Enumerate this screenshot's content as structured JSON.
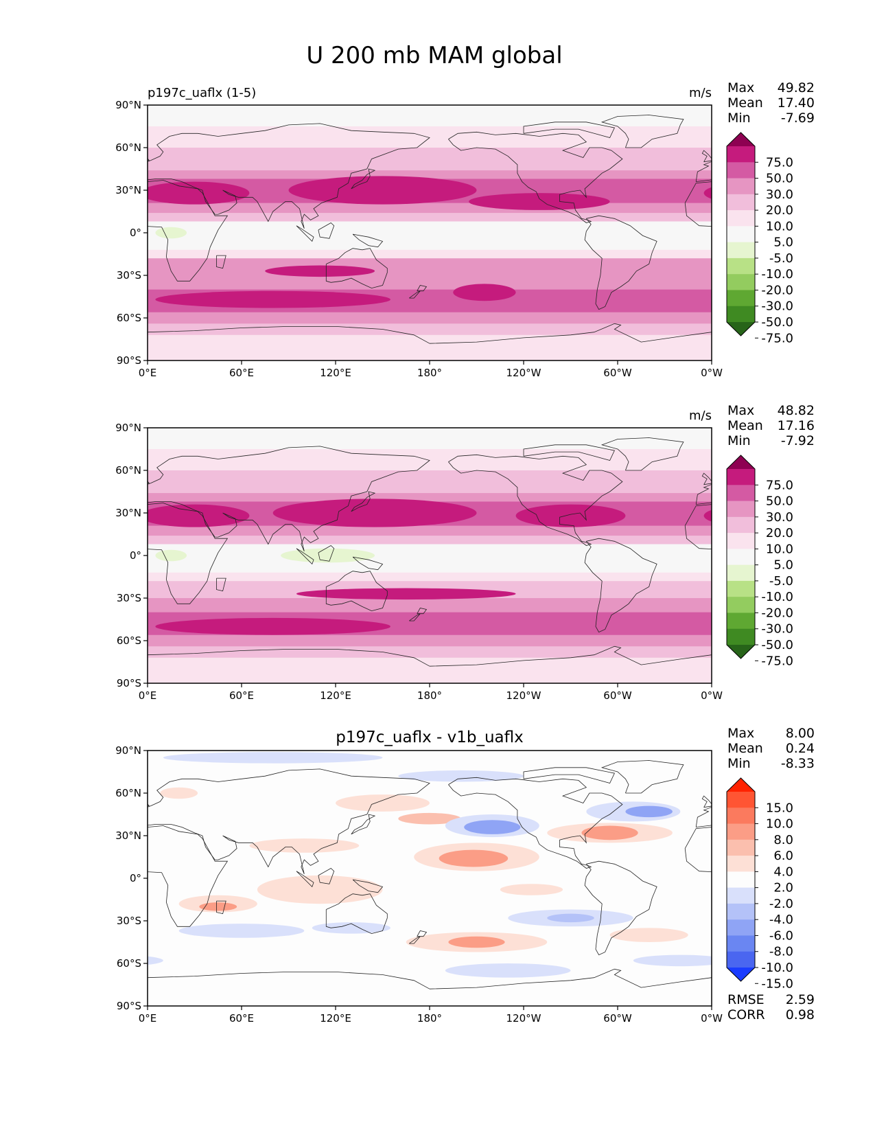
{
  "figure": {
    "title": "U 200 mb MAM global"
  },
  "chart_data": [
    {
      "type": "heatmap",
      "panel": "test",
      "title": "",
      "left_label": "p197c_uaflx (1-5)",
      "units": "m/s",
      "stats": [
        {
          "label": "Max",
          "value": "49.82"
        },
        {
          "label": "Mean",
          "value": "17.40"
        },
        {
          "label": "Min",
          "value": "-7.69"
        }
      ],
      "colorbar": {
        "levels": [
          "75.0",
          "50.0",
          "30.0",
          "20.0",
          "10.0",
          "5.0",
          "-5.0",
          "-10.0",
          "-20.0",
          "-30.0",
          "-50.0",
          "-75.0"
        ],
        "colors": [
          "#8e0152",
          "#c51b7d",
          "#d45aa3",
          "#e695c2",
          "#f1bedb",
          "#fae3ee",
          "#f7f7f7",
          "#e6f5d0",
          "#b8e186",
          "#93cc5f",
          "#5fa832",
          "#3f8a22",
          "#276419"
        ]
      },
      "x_ticks": [
        "0°E",
        "60°E",
        "120°E",
        "180°",
        "120°W",
        "60°W",
        "0°W"
      ],
      "y_ticks": [
        "90°N",
        "60°N",
        "30°N",
        "0°",
        "30°S",
        "60°S",
        "90°S"
      ],
      "x_range": [
        0,
        360
      ],
      "y_range": [
        -90,
        90
      ],
      "bands": [
        {
          "lat": [
            75,
            90
          ],
          "level": 6
        },
        {
          "lat": [
            60,
            75
          ],
          "level": 5
        },
        {
          "lat": [
            44,
            60
          ],
          "level": 4
        },
        {
          "lat": [
            38,
            44
          ],
          "level": 3
        },
        {
          "lat": [
            21,
            38
          ],
          "level": 2
        },
        {
          "lat": [
            14,
            21
          ],
          "level": 3
        },
        {
          "lat": [
            8,
            14
          ],
          "level": 4
        },
        {
          "lat": [
            -12,
            8
          ],
          "level": 6
        },
        {
          "lat": [
            -18,
            -12
          ],
          "level": 5
        },
        {
          "lat": [
            -32,
            -18
          ],
          "level": 3
        },
        {
          "lat": [
            -40,
            -32
          ],
          "level": 3
        },
        {
          "lat": [
            -56,
            -40
          ],
          "level": 2
        },
        {
          "lat": [
            -64,
            -56
          ],
          "level": 3
        },
        {
          "lat": [
            -72,
            -64
          ],
          "level": 4
        },
        {
          "lat": [
            -90,
            -72
          ],
          "level": 5
        }
      ],
      "blobs": [
        {
          "lon": 150,
          "lat": 30,
          "rlon": 60,
          "rlat": 10,
          "level": 1
        },
        {
          "lon": 30,
          "lat": 28,
          "rlon": 35,
          "rlat": 8,
          "level": 1
        },
        {
          "lon": 250,
          "lat": 22,
          "rlon": 45,
          "rlat": 6,
          "level": 1
        },
        {
          "lon": 80,
          "lat": -47,
          "rlon": 75,
          "rlat": 6,
          "level": 1
        },
        {
          "lon": 215,
          "lat": -42,
          "rlon": 20,
          "rlat": 6,
          "level": 1
        },
        {
          "lon": 110,
          "lat": -27,
          "rlon": 35,
          "rlat": 4,
          "level": 1
        },
        {
          "lon": 15,
          "lat": 0,
          "rlon": 10,
          "rlat": 4,
          "level": 7
        }
      ]
    },
    {
      "type": "heatmap",
      "panel": "reference",
      "title": "",
      "left_label": "",
      "units": "m/s",
      "stats": [
        {
          "label": "Max",
          "value": "48.82"
        },
        {
          "label": "Mean",
          "value": "17.16"
        },
        {
          "label": "Min",
          "value": "-7.92"
        }
      ],
      "colorbar": {
        "levels": [
          "75.0",
          "50.0",
          "30.0",
          "20.0",
          "10.0",
          "5.0",
          "-5.0",
          "-10.0",
          "-20.0",
          "-30.0",
          "-50.0",
          "-75.0"
        ],
        "colors": [
          "#8e0152",
          "#c51b7d",
          "#d45aa3",
          "#e695c2",
          "#f1bedb",
          "#fae3ee",
          "#f7f7f7",
          "#e6f5d0",
          "#b8e186",
          "#93cc5f",
          "#5fa832",
          "#3f8a22",
          "#276419"
        ]
      },
      "x_ticks": [
        "0°E",
        "60°E",
        "120°E",
        "180°",
        "120°W",
        "60°W",
        "0°W"
      ],
      "y_ticks": [
        "90°N",
        "60°N",
        "30°N",
        "0°",
        "30°S",
        "60°S",
        "90°S"
      ],
      "x_range": [
        0,
        360
      ],
      "y_range": [
        -90,
        90
      ],
      "bands": [
        {
          "lat": [
            75,
            90
          ],
          "level": 6
        },
        {
          "lat": [
            60,
            75
          ],
          "level": 5
        },
        {
          "lat": [
            44,
            60
          ],
          "level": 4
        },
        {
          "lat": [
            38,
            44
          ],
          "level": 3
        },
        {
          "lat": [
            21,
            38
          ],
          "level": 2
        },
        {
          "lat": [
            14,
            21
          ],
          "level": 3
        },
        {
          "lat": [
            8,
            14
          ],
          "level": 4
        },
        {
          "lat": [
            -12,
            8
          ],
          "level": 6
        },
        {
          "lat": [
            -18,
            -12
          ],
          "level": 5
        },
        {
          "lat": [
            -30,
            -18
          ],
          "level": 4
        },
        {
          "lat": [
            -40,
            -30
          ],
          "level": 3
        },
        {
          "lat": [
            -56,
            -40
          ],
          "level": 2
        },
        {
          "lat": [
            -64,
            -56
          ],
          "level": 3
        },
        {
          "lat": [
            -72,
            -64
          ],
          "level": 4
        },
        {
          "lat": [
            -90,
            -72
          ],
          "level": 5
        }
      ],
      "blobs": [
        {
          "lon": 145,
          "lat": 30,
          "rlon": 65,
          "rlat": 10,
          "level": 1
        },
        {
          "lon": 30,
          "lat": 28,
          "rlon": 35,
          "rlat": 8,
          "level": 1
        },
        {
          "lon": 270,
          "lat": 28,
          "rlon": 35,
          "rlat": 8,
          "level": 1
        },
        {
          "lon": 80,
          "lat": -50,
          "rlon": 75,
          "rlat": 6,
          "level": 1
        },
        {
          "lon": 165,
          "lat": -27,
          "rlon": 70,
          "rlat": 4,
          "level": 1
        },
        {
          "lon": 115,
          "lat": 0,
          "rlon": 30,
          "rlat": 5,
          "level": 7
        },
        {
          "lon": 15,
          "lat": 0,
          "rlon": 10,
          "rlat": 4,
          "level": 7
        }
      ]
    },
    {
      "type": "heatmap",
      "panel": "difference",
      "title": "p197c_uaflx - v1b_uaflx",
      "left_label": "",
      "units": "",
      "stats": [
        {
          "label": "Max",
          "value": "8.00"
        },
        {
          "label": "Mean",
          "value": "0.24"
        },
        {
          "label": "Min",
          "value": "-8.33"
        }
      ],
      "colorbar": {
        "levels": [
          "15.0",
          "10.0",
          "8.0",
          "6.0",
          "4.0",
          "2.0",
          "-2.0",
          "-4.0",
          "-6.0",
          "-8.0",
          "-10.0",
          "-15.0"
        ],
        "colors": [
          "#ff2200",
          "#ff5533",
          "#fb7a5e",
          "#fb9d86",
          "#fbbfae",
          "#fde0d6",
          "#fdfdfd",
          "#d9e0fb",
          "#b4c2f8",
          "#8fa4f5",
          "#6a86f2",
          "#4a66f0",
          "#1a3cff"
        ]
      },
      "x_ticks": [
        "0°E",
        "60°E",
        "120°E",
        "180°",
        "120°W",
        "60°W",
        "0°W"
      ],
      "y_ticks": [
        "90°N",
        "60°N",
        "30°N",
        "0°",
        "30°S",
        "60°S",
        "90°S"
      ],
      "x_range": [
        0,
        360
      ],
      "y_range": [
        -90,
        90
      ],
      "bands": [
        {
          "lat": [
            -90,
            90
          ],
          "level": 6
        }
      ],
      "blobs": [
        {
          "lon": 80,
          "lat": 85,
          "rlon": 70,
          "rlat": 4,
          "level": 7
        },
        {
          "lon": 200,
          "lat": 72,
          "rlon": 40,
          "rlat": 4,
          "level": 7
        },
        {
          "lon": 20,
          "lat": 60,
          "rlon": 12,
          "rlat": 4,
          "level": 5
        },
        {
          "lon": 150,
          "lat": 53,
          "rlon": 30,
          "rlat": 6,
          "level": 5
        },
        {
          "lon": 180,
          "lat": 42,
          "rlon": 20,
          "rlat": 4,
          "level": 4
        },
        {
          "lon": 220,
          "lat": 37,
          "rlon": 30,
          "rlat": 8,
          "level": 7
        },
        {
          "lon": 220,
          "lat": 36,
          "rlon": 18,
          "rlat": 5,
          "level": 9
        },
        {
          "lon": 310,
          "lat": 47,
          "rlon": 30,
          "rlat": 7,
          "level": 7
        },
        {
          "lon": 320,
          "lat": 47,
          "rlon": 15,
          "rlat": 4,
          "level": 9
        },
        {
          "lon": 295,
          "lat": 32,
          "rlon": 40,
          "rlat": 7,
          "level": 5
        },
        {
          "lon": 295,
          "lat": 32,
          "rlon": 18,
          "rlat": 5,
          "level": 3
        },
        {
          "lon": 100,
          "lat": 23,
          "rlon": 35,
          "rlat": 5,
          "level": 5
        },
        {
          "lon": 210,
          "lat": 15,
          "rlon": 40,
          "rlat": 10,
          "level": 5
        },
        {
          "lon": 208,
          "lat": 14,
          "rlon": 22,
          "rlat": 6,
          "level": 3
        },
        {
          "lon": 110,
          "lat": -8,
          "rlon": 40,
          "rlat": 10,
          "level": 5
        },
        {
          "lon": 45,
          "lat": -18,
          "rlon": 25,
          "rlat": 6,
          "level": 5
        },
        {
          "lon": 45,
          "lat": -20,
          "rlon": 12,
          "rlat": 3,
          "level": 3
        },
        {
          "lon": 245,
          "lat": -8,
          "rlon": 20,
          "rlat": 4,
          "level": 5
        },
        {
          "lon": 270,
          "lat": -28,
          "rlon": 40,
          "rlat": 6,
          "level": 7
        },
        {
          "lon": 270,
          "lat": -28,
          "rlon": 15,
          "rlat": 3,
          "level": 8
        },
        {
          "lon": 60,
          "lat": -37,
          "rlon": 40,
          "rlat": 5,
          "level": 7
        },
        {
          "lon": 130,
          "lat": -35,
          "rlon": 25,
          "rlat": 4,
          "level": 7
        },
        {
          "lon": 210,
          "lat": -45,
          "rlon": 45,
          "rlat": 7,
          "level": 5
        },
        {
          "lon": 210,
          "lat": -45,
          "rlon": 18,
          "rlat": 4,
          "level": 3
        },
        {
          "lon": 320,
          "lat": -40,
          "rlon": 25,
          "rlat": 5,
          "level": 5
        },
        {
          "lon": 230,
          "lat": -65,
          "rlon": 40,
          "rlat": 5,
          "level": 7
        },
        {
          "lon": 340,
          "lat": -58,
          "rlon": 30,
          "rlat": 4,
          "level": 7
        }
      ],
      "rmse_label": "RMSE",
      "rmse": "2.59",
      "corr_label": "CORR",
      "corr": "0.98"
    }
  ]
}
